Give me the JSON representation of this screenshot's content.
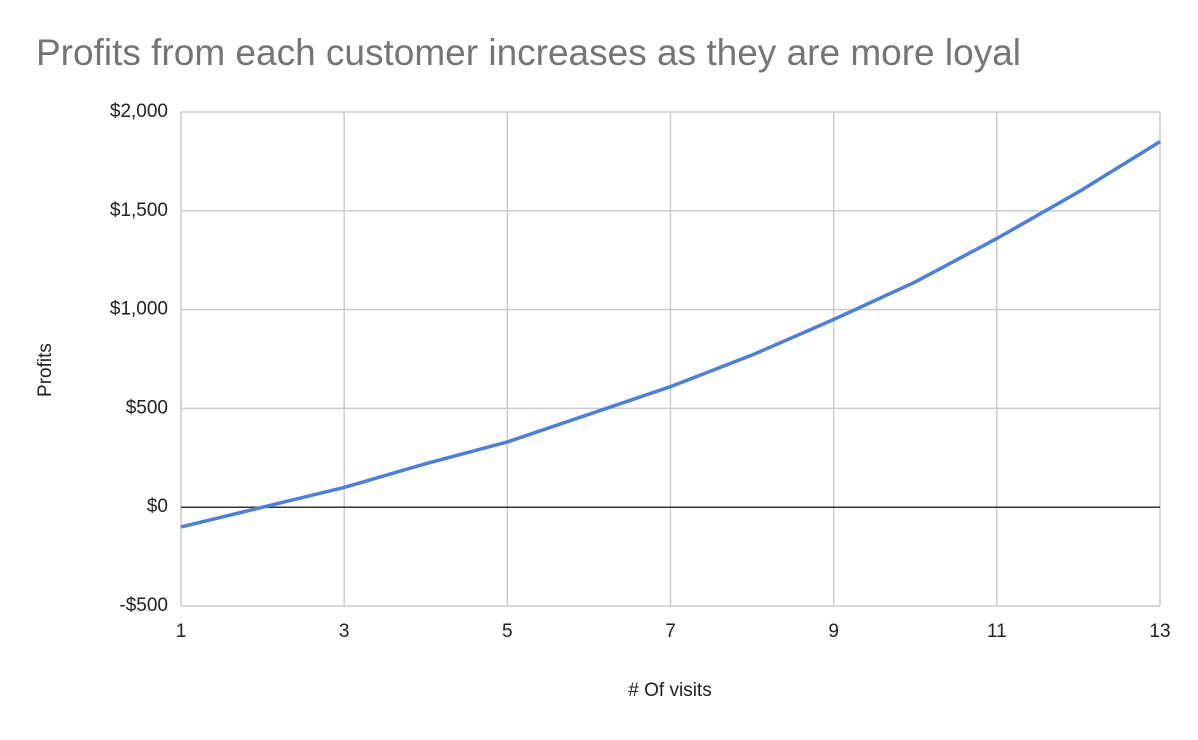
{
  "chart_data": {
    "type": "line",
    "title": "Profits from each customer increases as they are more loyal",
    "x_label": "# Of visits",
    "y_label": "Profits",
    "x": [
      1,
      2,
      3,
      4,
      5,
      6,
      7,
      8,
      9,
      10,
      11,
      12,
      13
    ],
    "series": [
      {
        "name": "Profits",
        "color": "#4a7fe0",
        "values": [
          -100,
          0,
          100,
          220,
          330,
          470,
          610,
          770,
          950,
          1140,
          1360,
          1595,
          1850
        ]
      }
    ],
    "xlim": [
      1,
      13
    ],
    "xticks": [
      1,
      3,
      5,
      7,
      9,
      11,
      13
    ],
    "ylim": [
      -500,
      2000
    ],
    "yticks": [
      {
        "value": -500,
        "label": "-$500"
      },
      {
        "value": 0,
        "label": "$0"
      },
      {
        "value": 500,
        "label": "$500"
      },
      {
        "value": 1000,
        "label": "$1,000"
      },
      {
        "value": 1500,
        "label": "$1,500"
      },
      {
        "value": 2000,
        "label": "$2,000"
      }
    ],
    "grid": true
  }
}
